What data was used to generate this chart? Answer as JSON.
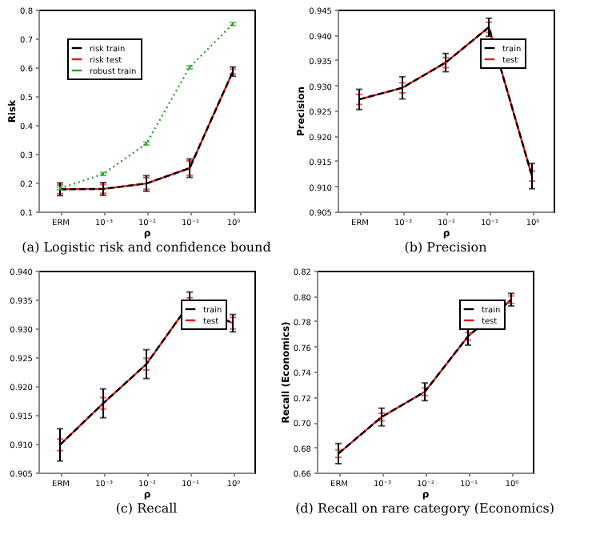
{
  "chart_data": [
    {
      "type": "line",
      "title": "(a) Logistic risk and confidence bound",
      "xlabel": "ρ",
      "ylabel": "Risk",
      "categories": [
        "ERM",
        "10⁻³",
        "10⁻²",
        "10⁻¹",
        "10⁰"
      ],
      "ylim": [
        0.1,
        0.8
      ],
      "yticks": [
        0.1,
        0.2,
        0.3,
        0.4,
        0.5,
        0.6,
        0.7,
        0.8
      ],
      "legend": "top left",
      "series": [
        {
          "name": "risk train",
          "color": "#000000",
          "line_style": "dashed",
          "values": [
            0.177,
            0.178,
            0.197,
            0.25,
            0.585
          ],
          "errors": [
            0.022,
            0.022,
            0.027,
            0.032,
            0.016
          ]
        },
        {
          "name": "risk test",
          "color": "#e41a1c",
          "line_style": "solid",
          "values": [
            0.177,
            0.178,
            0.197,
            0.25,
            0.585
          ],
          "errors": [
            0.015,
            0.015,
            0.02,
            0.025,
            0.008
          ]
        },
        {
          "name": "robust train",
          "color": "#2ca02c",
          "line_style": "dotted",
          "values": [
            0.18,
            0.23,
            0.335,
            0.6,
            0.75
          ],
          "errors": [
            0.005,
            0.005,
            0.005,
            0.005,
            0.005
          ]
        }
      ]
    },
    {
      "type": "line",
      "title": "(b) Precision",
      "xlabel": "ρ",
      "ylabel": "Precision",
      "categories": [
        "ERM",
        "10⁻³",
        "10⁻²",
        "10⁻¹",
        "10⁰"
      ],
      "ylim": [
        0.905,
        0.945
      ],
      "yticks": [
        0.905,
        {
          "value": 0.91,
          "label": "0.910"
        },
        0.915,
        {
          "value": 0.92,
          "label": "0.920"
        },
        0.925,
        {
          "value": 0.93,
          "label": "0.930"
        },
        0.935,
        {
          "value": 0.94,
          "label": "0.940"
        },
        0.945
      ],
      "legend": "top right",
      "series": [
        {
          "name": "train",
          "color": "#000000",
          "line_style": "dashed",
          "values": [
            0.9272,
            0.9295,
            0.9345,
            0.9415,
            0.912
          ],
          "errors": [
            0.002,
            0.0022,
            0.0018,
            0.0018,
            0.0025
          ]
        },
        {
          "name": "test",
          "color": "#e41a1c",
          "line_style": "solid",
          "values": [
            0.9272,
            0.9295,
            0.9345,
            0.9415,
            0.912
          ],
          "errors": [
            0.001,
            0.001,
            0.001,
            0.001,
            0.001
          ]
        }
      ]
    },
    {
      "type": "line",
      "title": "(c) Recall",
      "xlabel": "ρ",
      "categories": [
        "ERM",
        "10⁻³",
        "10⁻²",
        "10⁻¹",
        "10⁰"
      ],
      "ylim": [
        0.905,
        0.94
      ],
      "yticks": [
        0.905,
        {
          "value": 0.91,
          "label": "0.910"
        },
        0.915,
        {
          "value": 0.92,
          "label": "0.920"
        },
        0.925,
        {
          "value": 0.93,
          "label": "0.930"
        },
        0.935,
        {
          "value": 0.94,
          "label": "0.940"
        }
      ],
      "legend": "top right",
      "series": [
        {
          "name": "train",
          "color": "#000000",
          "line_style": "dashed",
          "values": [
            0.9098,
            0.917,
            0.9238,
            0.9343,
            0.9309
          ],
          "errors": [
            0.0028,
            0.0025,
            0.0025,
            0.002,
            0.0015
          ]
        },
        {
          "name": "test",
          "color": "#e41a1c",
          "line_style": "solid",
          "values": [
            0.9098,
            0.917,
            0.9238,
            0.9343,
            0.9309
          ],
          "errors": [
            0.001,
            0.001,
            0.001,
            0.001,
            0.001
          ]
        }
      ]
    },
    {
      "type": "line",
      "title": "(d) Recall on rare category (Economics)",
      "xlabel": "ρ",
      "ylabel": "Recall (Economics)",
      "categories": [
        "ERM",
        "10⁻³",
        "10⁻²",
        "10⁻¹",
        "10⁰"
      ],
      "ylim": [
        0.66,
        0.82
      ],
      "yticks": [
        0.66,
        0.68,
        {
          "value": 0.7,
          "label": "0.70"
        },
        0.72,
        0.74,
        0.76,
        0.78,
        {
          "value": 0.8,
          "label": "0.80"
        },
        0.82
      ],
      "legend": "top right",
      "series": [
        {
          "name": "train",
          "color": "#000000",
          "line_style": "dashed",
          "values": [
            0.675,
            0.704,
            0.724,
            0.768,
            0.797
          ],
          "errors": [
            0.008,
            0.007,
            0.007,
            0.007,
            0.005
          ]
        },
        {
          "name": "test",
          "color": "#e41a1c",
          "line_style": "solid",
          "values": [
            0.675,
            0.704,
            0.724,
            0.768,
            0.797
          ],
          "errors": [
            0.003,
            0.003,
            0.003,
            0.003,
            0.003
          ]
        }
      ]
    }
  ]
}
